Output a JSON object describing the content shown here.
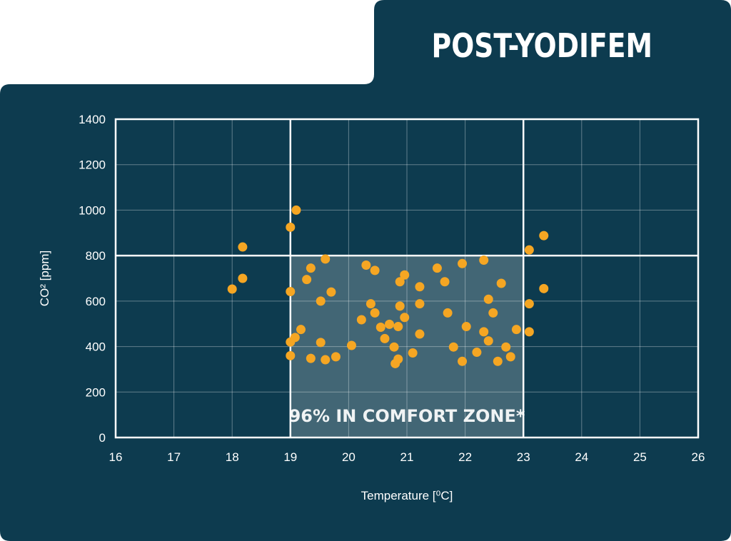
{
  "chart_data": {
    "type": "scatter",
    "title": "POST-YODIFEM",
    "xlabel": "Temperature [⁰C]",
    "ylabel": "CO² [ppm]",
    "xlim": [
      16,
      26
    ],
    "ylim": [
      0,
      1400
    ],
    "x_ticks": [
      16,
      17,
      18,
      19,
      20,
      21,
      22,
      23,
      24,
      25,
      26
    ],
    "y_ticks": [
      0,
      200,
      400,
      600,
      800,
      1000,
      1200,
      1400
    ],
    "grid": true,
    "comfort_zone": {
      "x_range": [
        19,
        23
      ],
      "y_range": [
        0,
        800
      ],
      "label": "96% IN COMFORT ZONE*"
    },
    "series": [
      {
        "marker_color": "#F5A623",
        "points": [
          [
            18.0,
            653
          ],
          [
            18.18,
            700
          ],
          [
            18.18,
            838
          ],
          [
            19.0,
            925
          ],
          [
            19.1,
            1000
          ],
          [
            19.0,
            642
          ],
          [
            19.0,
            420
          ],
          [
            19.0,
            360
          ],
          [
            19.08,
            440
          ],
          [
            19.18,
            475
          ],
          [
            19.28,
            695
          ],
          [
            19.35,
            745
          ],
          [
            19.35,
            348
          ],
          [
            19.52,
            600
          ],
          [
            19.52,
            418
          ],
          [
            19.6,
            785
          ],
          [
            19.6,
            342
          ],
          [
            19.7,
            640
          ],
          [
            19.78,
            355
          ],
          [
            20.05,
            405
          ],
          [
            20.22,
            518
          ],
          [
            20.3,
            758
          ],
          [
            20.38,
            588
          ],
          [
            20.45,
            735
          ],
          [
            20.45,
            548
          ],
          [
            20.55,
            485
          ],
          [
            20.62,
            435
          ],
          [
            20.7,
            498
          ],
          [
            20.78,
            398
          ],
          [
            20.8,
            325
          ],
          [
            20.85,
            345
          ],
          [
            20.85,
            488
          ],
          [
            20.88,
            685
          ],
          [
            20.88,
            578
          ],
          [
            20.96,
            715
          ],
          [
            20.96,
            528
          ],
          [
            21.1,
            372
          ],
          [
            21.22,
            663
          ],
          [
            21.22,
            588
          ],
          [
            21.22,
            455
          ],
          [
            21.52,
            745
          ],
          [
            21.65,
            685
          ],
          [
            21.7,
            548
          ],
          [
            21.8,
            398
          ],
          [
            21.95,
            765
          ],
          [
            21.95,
            335
          ],
          [
            22.02,
            488
          ],
          [
            22.2,
            375
          ],
          [
            22.32,
            780
          ],
          [
            22.32,
            465
          ],
          [
            22.4,
            608
          ],
          [
            22.4,
            425
          ],
          [
            22.48,
            548
          ],
          [
            22.56,
            335
          ],
          [
            22.62,
            678
          ],
          [
            22.7,
            398
          ],
          [
            22.78,
            355
          ],
          [
            22.88,
            475
          ],
          [
            23.1,
            825
          ],
          [
            23.1,
            588
          ],
          [
            23.1,
            465
          ],
          [
            23.35,
            888
          ],
          [
            23.35,
            655
          ]
        ]
      }
    ]
  }
}
